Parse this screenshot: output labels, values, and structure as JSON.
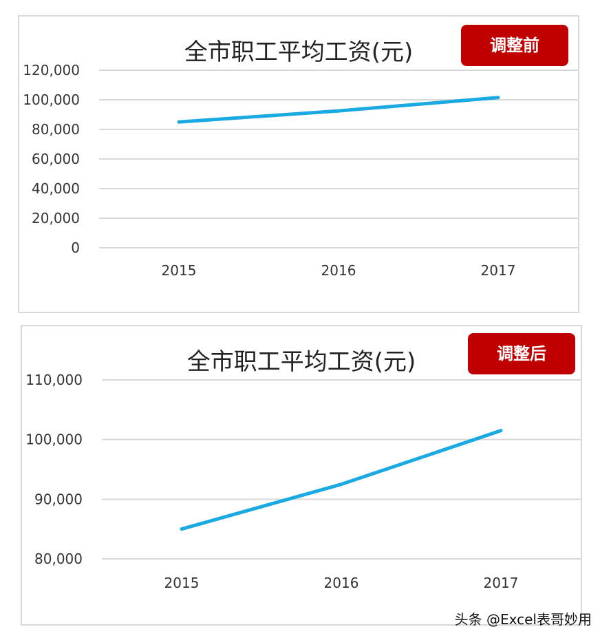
{
  "chart_data": [
    {
      "type": "line",
      "title": "全市职工平均工资(元)",
      "badge": "调整前",
      "categories": [
        "2015",
        "2016",
        "2017"
      ],
      "series": [
        {
          "values": [
            85000,
            92500,
            101500
          ]
        }
      ],
      "ylim": [
        0,
        120000
      ],
      "yticks": [
        0,
        20000,
        40000,
        60000,
        80000,
        100000,
        120000
      ],
      "ytick_labels": [
        "0",
        "20,000",
        "40,000",
        "60,000",
        "80,000",
        "100,000",
        "120,000"
      ],
      "grid": true,
      "color": "#1aa9e1"
    },
    {
      "type": "line",
      "title": "全市职工平均工资(元)",
      "badge": "调整后",
      "categories": [
        "2015",
        "2016",
        "2017"
      ],
      "series": [
        {
          "values": [
            85000,
            92500,
            101500
          ]
        }
      ],
      "ylim": [
        80000,
        110000
      ],
      "yticks": [
        80000,
        90000,
        100000,
        110000
      ],
      "ytick_labels": [
        "80,000",
        "90,000",
        "100,000",
        "110,000"
      ],
      "grid": true,
      "color": "#1aa9e1"
    }
  ],
  "badge_color": "#c00000",
  "watermark": "头条 @Excel表哥妙用"
}
